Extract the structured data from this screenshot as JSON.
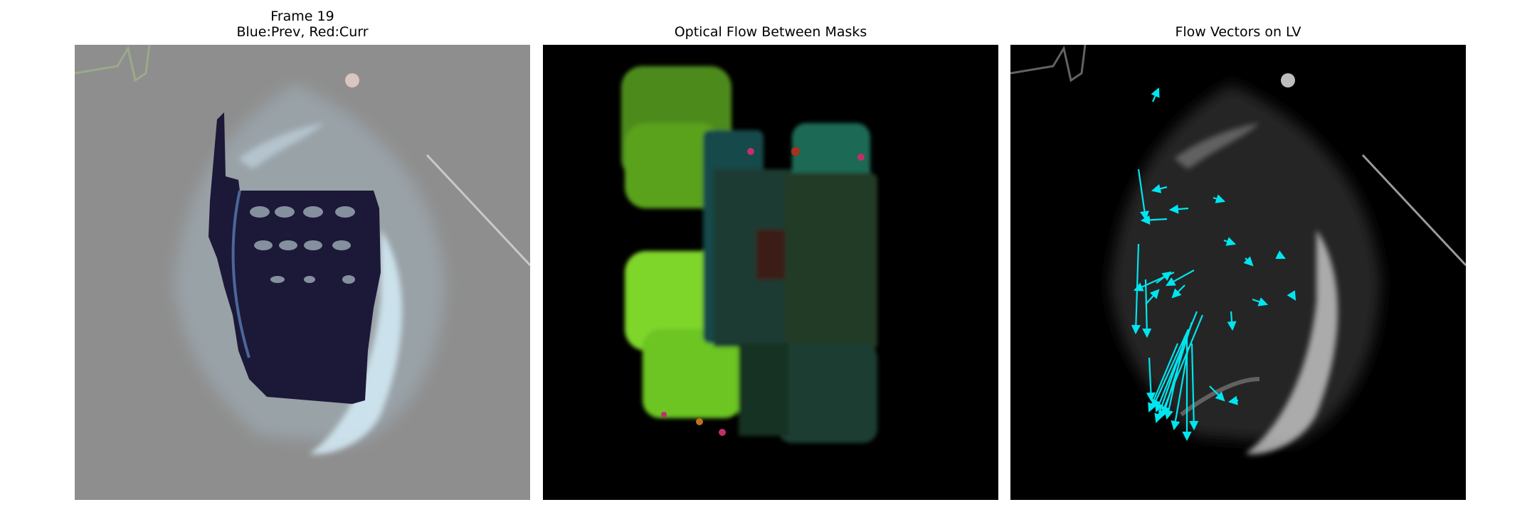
{
  "panels": [
    {
      "title_line1": "Frame 19",
      "title_line2": "Blue:Prev, Red:Curr"
    },
    {
      "title": "Optical Flow Between Masks"
    },
    {
      "title": "Flow Vectors on LV"
    }
  ],
  "colors": {
    "overlay_gray": "#8f8f8f",
    "mask_navy": "#1c1838",
    "ultrasound_highlight": "#cfe6f2",
    "flow_green": "#7fd62a",
    "flow_teal": "#1f8f88",
    "arrow_cyan": "#00ffff"
  }
}
